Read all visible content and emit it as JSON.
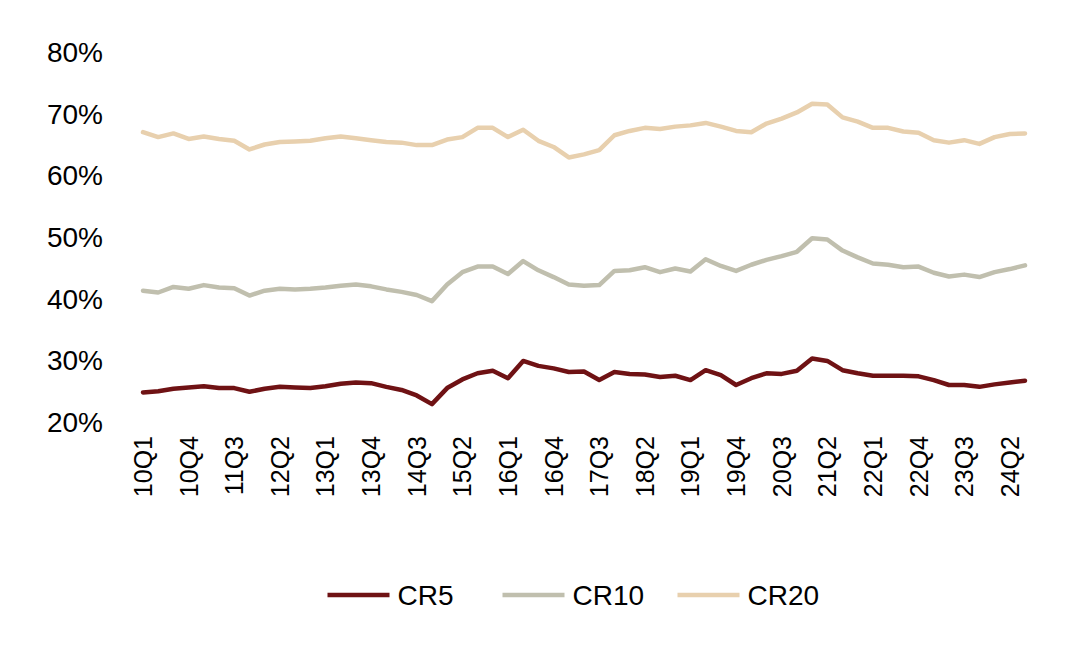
{
  "chart_data": {
    "type": "line",
    "categories": [
      "10Q1",
      null,
      null,
      "10Q4",
      null,
      null,
      "11Q3",
      null,
      null,
      "12Q2",
      null,
      null,
      "13Q1",
      null,
      null,
      "13Q4",
      null,
      null,
      "14Q3",
      null,
      null,
      "15Q2",
      null,
      null,
      "16Q1",
      null,
      null,
      "16Q4",
      null,
      null,
      "17Q3",
      null,
      null,
      "18Q2",
      null,
      null,
      "19Q1",
      null,
      null,
      "19Q4",
      null,
      null,
      "20Q3",
      null,
      null,
      "21Q2",
      null,
      null,
      "22Q1",
      null,
      null,
      "22Q4",
      null,
      null,
      "23Q3",
      null,
      null,
      "24Q2",
      null
    ],
    "series": [
      {
        "name": "CR5",
        "color": "#6f1214",
        "values": [
          24.8,
          25.0,
          25.4,
          25.6,
          25.8,
          25.5,
          25.5,
          24.9,
          25.4,
          25.7,
          25.6,
          25.5,
          25.8,
          26.2,
          26.4,
          26.3,
          25.7,
          25.2,
          24.3,
          22.9,
          25.5,
          26.9,
          27.9,
          28.3,
          27.1,
          29.9,
          29.1,
          28.7,
          28.1,
          28.2,
          26.8,
          28.1,
          27.8,
          27.7,
          27.3,
          27.5,
          26.8,
          28.4,
          27.6,
          26.0,
          27.1,
          27.9,
          27.8,
          28.3,
          30.3,
          29.9,
          28.4,
          27.9,
          27.5,
          27.5,
          27.5,
          27.4,
          26.8,
          26.0,
          26.0,
          25.7,
          26.1,
          26.4,
          26.7
        ]
      },
      {
        "name": "CR10",
        "color": "#c0bfae",
        "values": [
          41.3,
          41.0,
          41.9,
          41.6,
          42.2,
          41.8,
          41.7,
          40.5,
          41.3,
          41.6,
          41.5,
          41.6,
          41.8,
          42.1,
          42.3,
          42.0,
          41.5,
          41.1,
          40.6,
          39.6,
          42.3,
          44.3,
          45.2,
          45.2,
          44.0,
          46.1,
          44.6,
          43.5,
          42.3,
          42.1,
          42.2,
          44.5,
          44.6,
          45.1,
          44.3,
          44.9,
          44.4,
          46.4,
          45.3,
          44.5,
          45.5,
          46.3,
          46.9,
          47.6,
          49.8,
          49.6,
          47.8,
          46.7,
          45.7,
          45.5,
          45.1,
          45.2,
          44.2,
          43.6,
          43.9,
          43.5,
          44.3,
          44.8,
          45.4
        ]
      },
      {
        "name": "CR20",
        "color": "#e8d0ae",
        "values": [
          67.0,
          66.2,
          66.8,
          65.9,
          66.3,
          65.9,
          65.6,
          64.2,
          65.0,
          65.4,
          65.5,
          65.6,
          66.0,
          66.3,
          66.0,
          65.7,
          65.4,
          65.3,
          64.9,
          64.9,
          65.8,
          66.2,
          67.7,
          67.7,
          66.2,
          67.4,
          65.6,
          64.6,
          62.9,
          63.4,
          64.1,
          66.5,
          67.2,
          67.7,
          67.5,
          67.9,
          68.1,
          68.5,
          67.9,
          67.2,
          67.0,
          68.4,
          69.2,
          70.2,
          71.6,
          71.5,
          69.4,
          68.7,
          67.7,
          67.7,
          67.1,
          66.9,
          65.7,
          65.3,
          65.7,
          65.1,
          66.2,
          66.7,
          66.8
        ]
      }
    ],
    "ylim": [
      20,
      80
    ],
    "yticks": [
      {
        "value": 20,
        "label": "20%"
      },
      {
        "value": 30,
        "label": "30%"
      },
      {
        "value": 40,
        "label": "40%"
      },
      {
        "value": 50,
        "label": "50%"
      },
      {
        "value": 60,
        "label": "60%"
      },
      {
        "value": 70,
        "label": "70%"
      },
      {
        "value": 80,
        "label": "80%"
      }
    ],
    "grid": false,
    "legend": "bottom"
  }
}
